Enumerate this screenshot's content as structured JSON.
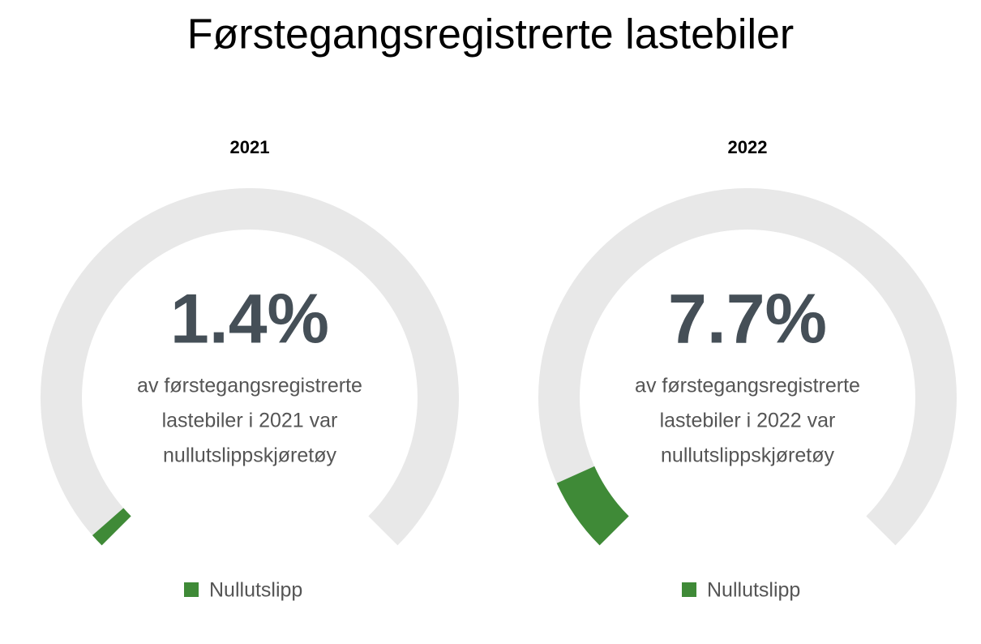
{
  "title": "Førstegangsregistrerte lastebiler",
  "chart_data": [
    {
      "type": "gauge",
      "title": "2021",
      "values": [
        1.4
      ],
      "value_labels": [
        "1.4%"
      ],
      "annotation": [
        "av førstegangsregistrerte",
        "lastebiler i 2021 var",
        "nullutslippskjøretøy"
      ],
      "series_name": "Nullutslipp",
      "color": "#3f8a37",
      "track_color": "#e8e8e8",
      "ylim": [
        0,
        100
      ]
    },
    {
      "type": "gauge",
      "title": "2022",
      "values": [
        7.7
      ],
      "value_labels": [
        "7.7%"
      ],
      "annotation": [
        "av førstegangsregistrerte",
        "lastebiler i 2022 var",
        "nullutslippskjøretøy"
      ],
      "series_name": "Nullutslipp",
      "color": "#3f8a37",
      "track_color": "#e8e8e8",
      "ylim": [
        0,
        100
      ]
    }
  ]
}
